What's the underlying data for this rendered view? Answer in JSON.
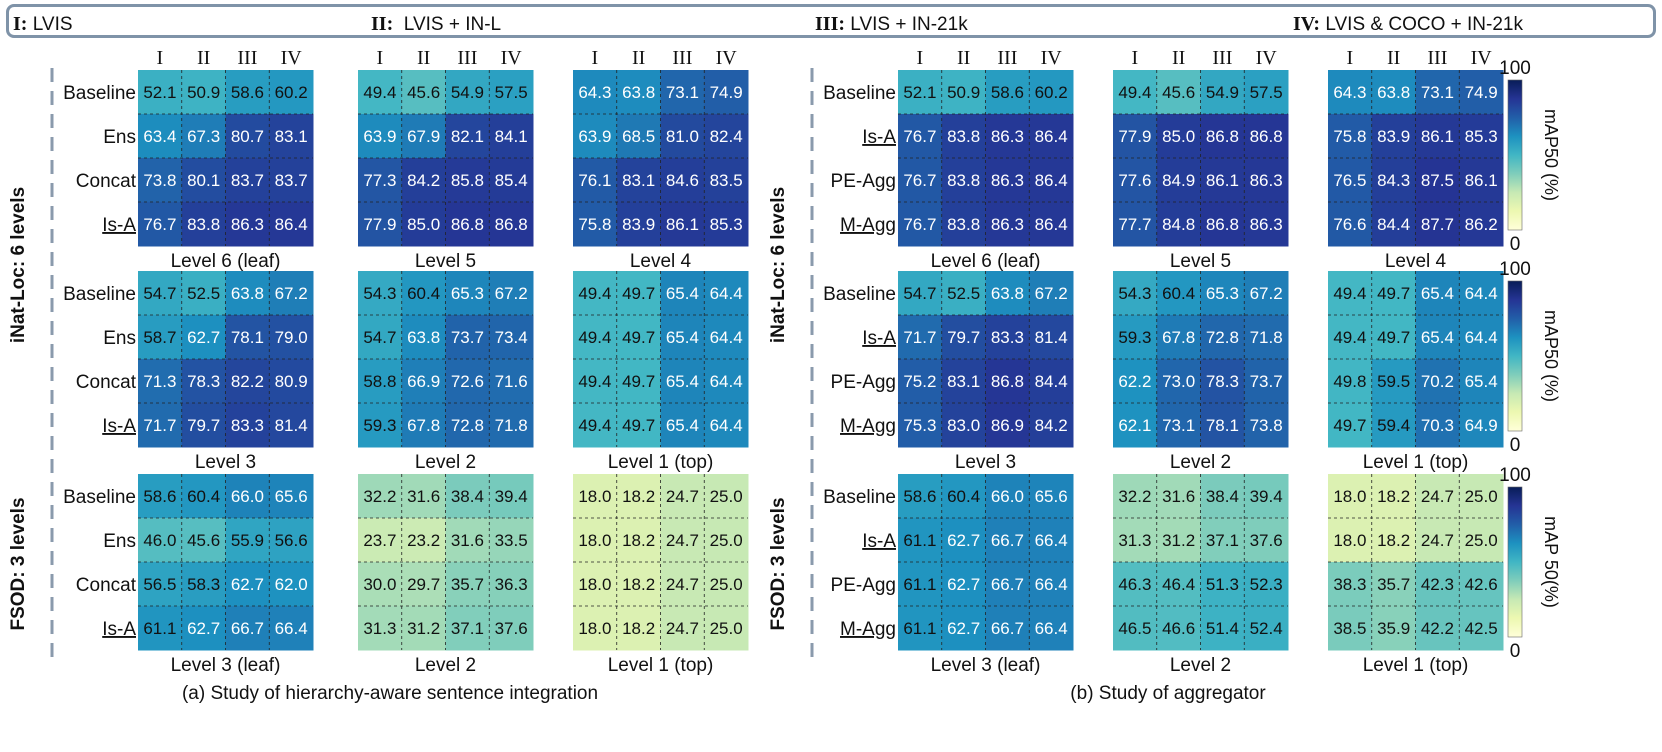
{
  "legend": [
    {
      "key": "I:",
      "text": "LVIS"
    },
    {
      "key": "II:",
      "text": "LVIS + IN-L"
    },
    {
      "key": "III:",
      "text": "LVIS + IN-21k"
    },
    {
      "key": "IV:",
      "text": "LVIS & COCO + IN-21k"
    }
  ],
  "colorscale": {
    "colors": [
      "#ffffd9",
      "#edf8b1",
      "#c7e9b4",
      "#7fcdbb",
      "#41b6c4",
      "#1d91c0",
      "#225ea8",
      "#253494",
      "#081d58"
    ],
    "min": 0,
    "max": 100
  },
  "panels": [
    {
      "caption": "(a) Study of hierarchy-aware sentence integration",
      "group_labels": [
        "iNat-Loc: 6 levels",
        "FSOD: 3 levels"
      ],
      "cols": [
        "I",
        "II",
        "III",
        "IV"
      ],
      "rows": [
        {
          "labels": [
            "Baseline",
            "Ens",
            "Concat",
            "Is-A"
          ],
          "underline": [
            3
          ],
          "grids": [
            {
              "title": "Level 6 (leaf)",
              "values": [
                [
                  52.1,
                  50.9,
                  58.6,
                  60.2
                ],
                [
                  63.4,
                  67.3,
                  80.7,
                  83.1
                ],
                [
                  73.8,
                  80.1,
                  83.7,
                  83.7
                ],
                [
                  76.7,
                  83.8,
                  86.3,
                  86.4
                ]
              ]
            },
            {
              "title": "Level 5",
              "values": [
                [
                  49.4,
                  45.6,
                  54.9,
                  57.5
                ],
                [
                  63.9,
                  67.9,
                  82.1,
                  84.1
                ],
                [
                  77.3,
                  84.2,
                  85.8,
                  85.4
                ],
                [
                  77.9,
                  85.0,
                  86.8,
                  86.8
                ]
              ]
            },
            {
              "title": "Level 4",
              "values": [
                [
                  64.3,
                  63.8,
                  73.1,
                  74.9
                ],
                [
                  63.9,
                  68.5,
                  81.0,
                  82.4
                ],
                [
                  76.1,
                  83.1,
                  84.6,
                  83.5
                ],
                [
                  75.8,
                  83.9,
                  86.1,
                  85.3
                ]
              ]
            }
          ]
        },
        {
          "labels": [
            "Baseline",
            "Ens",
            "Concat",
            "Is-A"
          ],
          "underline": [
            3
          ],
          "grids": [
            {
              "title": "Level 3",
              "values": [
                [
                  54.7,
                  52.5,
                  63.8,
                  67.2
                ],
                [
                  58.7,
                  62.7,
                  78.1,
                  79.0
                ],
                [
                  71.3,
                  78.3,
                  82.2,
                  80.9
                ],
                [
                  71.7,
                  79.7,
                  83.3,
                  81.4
                ]
              ]
            },
            {
              "title": "Level 2",
              "values": [
                [
                  54.3,
                  60.4,
                  65.3,
                  67.2
                ],
                [
                  54.7,
                  63.8,
                  73.7,
                  73.4
                ],
                [
                  58.8,
                  66.9,
                  72.6,
                  71.6
                ],
                [
                  59.3,
                  67.8,
                  72.8,
                  71.8
                ]
              ]
            },
            {
              "title": "Level 1 (top)",
              "values": [
                [
                  49.4,
                  49.7,
                  65.4,
                  64.4
                ],
                [
                  49.4,
                  49.7,
                  65.4,
                  64.4
                ],
                [
                  49.4,
                  49.7,
                  65.4,
                  64.4
                ],
                [
                  49.4,
                  49.7,
                  65.4,
                  64.4
                ]
              ]
            }
          ]
        },
        {
          "labels": [
            "Baseline",
            "Ens",
            "Concat",
            "Is-A"
          ],
          "underline": [
            3
          ],
          "grids": [
            {
              "title": "Level 3 (leaf)",
              "values": [
                [
                  58.6,
                  60.4,
                  66.0,
                  65.6
                ],
                [
                  46.0,
                  45.6,
                  55.9,
                  56.6
                ],
                [
                  56.5,
                  58.3,
                  62.7,
                  62.0
                ],
                [
                  61.1,
                  62.7,
                  66.7,
                  66.4
                ]
              ]
            },
            {
              "title": "Level 2",
              "values": [
                [
                  32.2,
                  31.6,
                  38.4,
                  39.4
                ],
                [
                  23.7,
                  23.2,
                  31.6,
                  33.5
                ],
                [
                  30.0,
                  29.7,
                  35.7,
                  36.3
                ],
                [
                  31.3,
                  31.2,
                  37.1,
                  37.6
                ]
              ]
            },
            {
              "title": "Level 1 (top)",
              "values": [
                [
                  18.0,
                  18.2,
                  24.7,
                  25.0
                ],
                [
                  18.0,
                  18.2,
                  24.7,
                  25.0
                ],
                [
                  18.0,
                  18.2,
                  24.7,
                  25.0
                ],
                [
                  18.0,
                  18.2,
                  24.7,
                  25.0
                ]
              ]
            }
          ]
        }
      ]
    },
    {
      "caption": "(b) Study of aggregator",
      "group_labels": [
        "iNat-Loc: 6 levels",
        "FSOD: 3 levels"
      ],
      "cols": [
        "I",
        "II",
        "III",
        "IV"
      ],
      "rows": [
        {
          "labels": [
            "Baseline",
            "Is-A",
            "PE-Agg",
            "M-Agg"
          ],
          "underline": [
            1,
            3
          ],
          "grids": [
            {
              "title": "Level 6 (leaf)",
              "values": [
                [
                  52.1,
                  50.9,
                  58.6,
                  60.2
                ],
                [
                  76.7,
                  83.8,
                  86.3,
                  86.4
                ],
                [
                  76.7,
                  83.8,
                  86.3,
                  86.4
                ],
                [
                  76.7,
                  83.8,
                  86.3,
                  86.4
                ]
              ]
            },
            {
              "title": "Level 5",
              "values": [
                [
                  49.4,
                  45.6,
                  54.9,
                  57.5
                ],
                [
                  77.9,
                  85.0,
                  86.8,
                  86.8
                ],
                [
                  77.6,
                  84.9,
                  86.1,
                  86.3
                ],
                [
                  77.7,
                  84.8,
                  86.8,
                  86.3
                ]
              ]
            },
            {
              "title": "Level 4",
              "values": [
                [
                  64.3,
                  63.8,
                  73.1,
                  74.9
                ],
                [
                  75.8,
                  83.9,
                  86.1,
                  85.3
                ],
                [
                  76.5,
                  84.3,
                  87.5,
                  86.1
                ],
                [
                  76.6,
                  84.4,
                  87.7,
                  86.2
                ]
              ]
            }
          ]
        },
        {
          "labels": [
            "Baseline",
            "Is-A",
            "PE-Agg",
            "M-Agg"
          ],
          "underline": [
            1,
            3
          ],
          "grids": [
            {
              "title": "Level 3",
              "values": [
                [
                  54.7,
                  52.5,
                  63.8,
                  67.2
                ],
                [
                  71.7,
                  79.7,
                  83.3,
                  81.4
                ],
                [
                  75.2,
                  83.1,
                  86.8,
                  84.4
                ],
                [
                  75.3,
                  83.0,
                  86.9,
                  84.2
                ]
              ]
            },
            {
              "title": "Level 2",
              "values": [
                [
                  54.3,
                  60.4,
                  65.3,
                  67.2
                ],
                [
                  59.3,
                  67.8,
                  72.8,
                  71.8
                ],
                [
                  62.2,
                  73.0,
                  78.3,
                  73.7
                ],
                [
                  62.1,
                  73.1,
                  78.1,
                  73.8
                ]
              ]
            },
            {
              "title": "Level 1 (top)",
              "values": [
                [
                  49.4,
                  49.7,
                  65.4,
                  64.4
                ],
                [
                  49.4,
                  49.7,
                  65.4,
                  64.4
                ],
                [
                  49.8,
                  59.5,
                  70.2,
                  65.4
                ],
                [
                  49.7,
                  59.4,
                  70.3,
                  64.9
                ]
              ]
            }
          ]
        },
        {
          "labels": [
            "Baseline",
            "Is-A",
            "PE-Agg",
            "M-Agg"
          ],
          "underline": [
            1,
            3
          ],
          "grids": [
            {
              "title": "Level 3 (leaf)",
              "values": [
                [
                  58.6,
                  60.4,
                  66.0,
                  65.6
                ],
                [
                  61.1,
                  62.7,
                  66.7,
                  66.4
                ],
                [
                  61.1,
                  62.7,
                  66.7,
                  66.4
                ],
                [
                  61.1,
                  62.7,
                  66.7,
                  66.4
                ]
              ]
            },
            {
              "title": "Level 2",
              "values": [
                [
                  32.2,
                  31.6,
                  38.4,
                  39.4
                ],
                [
                  31.3,
                  31.2,
                  37.1,
                  37.6
                ],
                [
                  46.3,
                  46.4,
                  51.3,
                  52.3
                ],
                [
                  46.5,
                  46.6,
                  51.4,
                  52.4
                ]
              ]
            },
            {
              "title": "Level 1 (top)",
              "values": [
                [
                  18.0,
                  18.2,
                  24.7,
                  25.0
                ],
                [
                  18.0,
                  18.2,
                  24.7,
                  25.0
                ],
                [
                  38.3,
                  35.7,
                  42.3,
                  42.6
                ],
                [
                  38.5,
                  35.9,
                  42.2,
                  42.5
                ]
              ]
            }
          ]
        }
      ]
    }
  ],
  "colorbars": [
    {
      "max_label": "100",
      "min_label": "0",
      "label": "mAP50 (%)"
    },
    {
      "max_label": "100",
      "min_label": "0",
      "label": "mAP50 (%)"
    },
    {
      "max_label": "100",
      "min_label": "0",
      "label": "mAP 50(%)"
    }
  ],
  "chart_data": {
    "type": "heatmap",
    "series_legend": {
      "I": "LVIS",
      "II": "LVIS + IN-L",
      "III": "LVIS + IN-21k",
      "IV": "LVIS & COCO + IN-21k"
    },
    "metric": "mAP50 (%)",
    "range": [
      0,
      100
    ],
    "note_ref": "values per grid listed in panels[].rows[].grids[]"
  }
}
